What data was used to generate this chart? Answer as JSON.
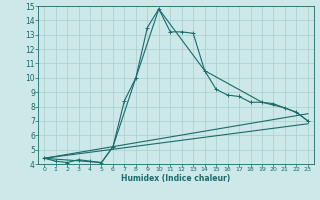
{
  "xlabel": "Humidex (Indice chaleur)",
  "background_color": "#cce8e8",
  "grid_color": "#aacece",
  "line_color": "#1a6b6b",
  "xlim": [
    -0.5,
    23.5
  ],
  "ylim": [
    4,
    15
  ],
  "xticks": [
    0,
    1,
    2,
    3,
    4,
    5,
    6,
    7,
    8,
    9,
    10,
    11,
    12,
    13,
    14,
    15,
    16,
    17,
    18,
    19,
    20,
    21,
    22,
    23
  ],
  "yticks": [
    4,
    5,
    6,
    7,
    8,
    9,
    10,
    11,
    12,
    13,
    14,
    15
  ],
  "series_main": {
    "x": [
      0,
      1,
      2,
      3,
      4,
      5,
      6,
      7,
      8,
      9,
      10,
      11,
      12,
      13,
      14,
      15,
      16,
      17,
      18,
      19,
      20,
      21,
      22,
      23
    ],
    "y": [
      4.4,
      4.2,
      4.1,
      4.3,
      4.2,
      4.1,
      5.2,
      8.4,
      10.0,
      13.5,
      14.8,
      13.2,
      13.2,
      13.1,
      10.5,
      9.2,
      8.8,
      8.7,
      8.3,
      8.3,
      8.2,
      7.9,
      7.6,
      7.0
    ]
  },
  "series_envelope": [
    {
      "x": [
        0,
        5,
        6,
        10,
        14,
        19,
        21,
        22,
        23
      ],
      "y": [
        4.4,
        4.1,
        5.2,
        14.8,
        10.5,
        8.3,
        7.9,
        7.6,
        7.0
      ]
    },
    {
      "x": [
        0,
        23
      ],
      "y": [
        4.4,
        7.5
      ]
    },
    {
      "x": [
        0,
        23
      ],
      "y": [
        4.4,
        6.8
      ]
    }
  ]
}
